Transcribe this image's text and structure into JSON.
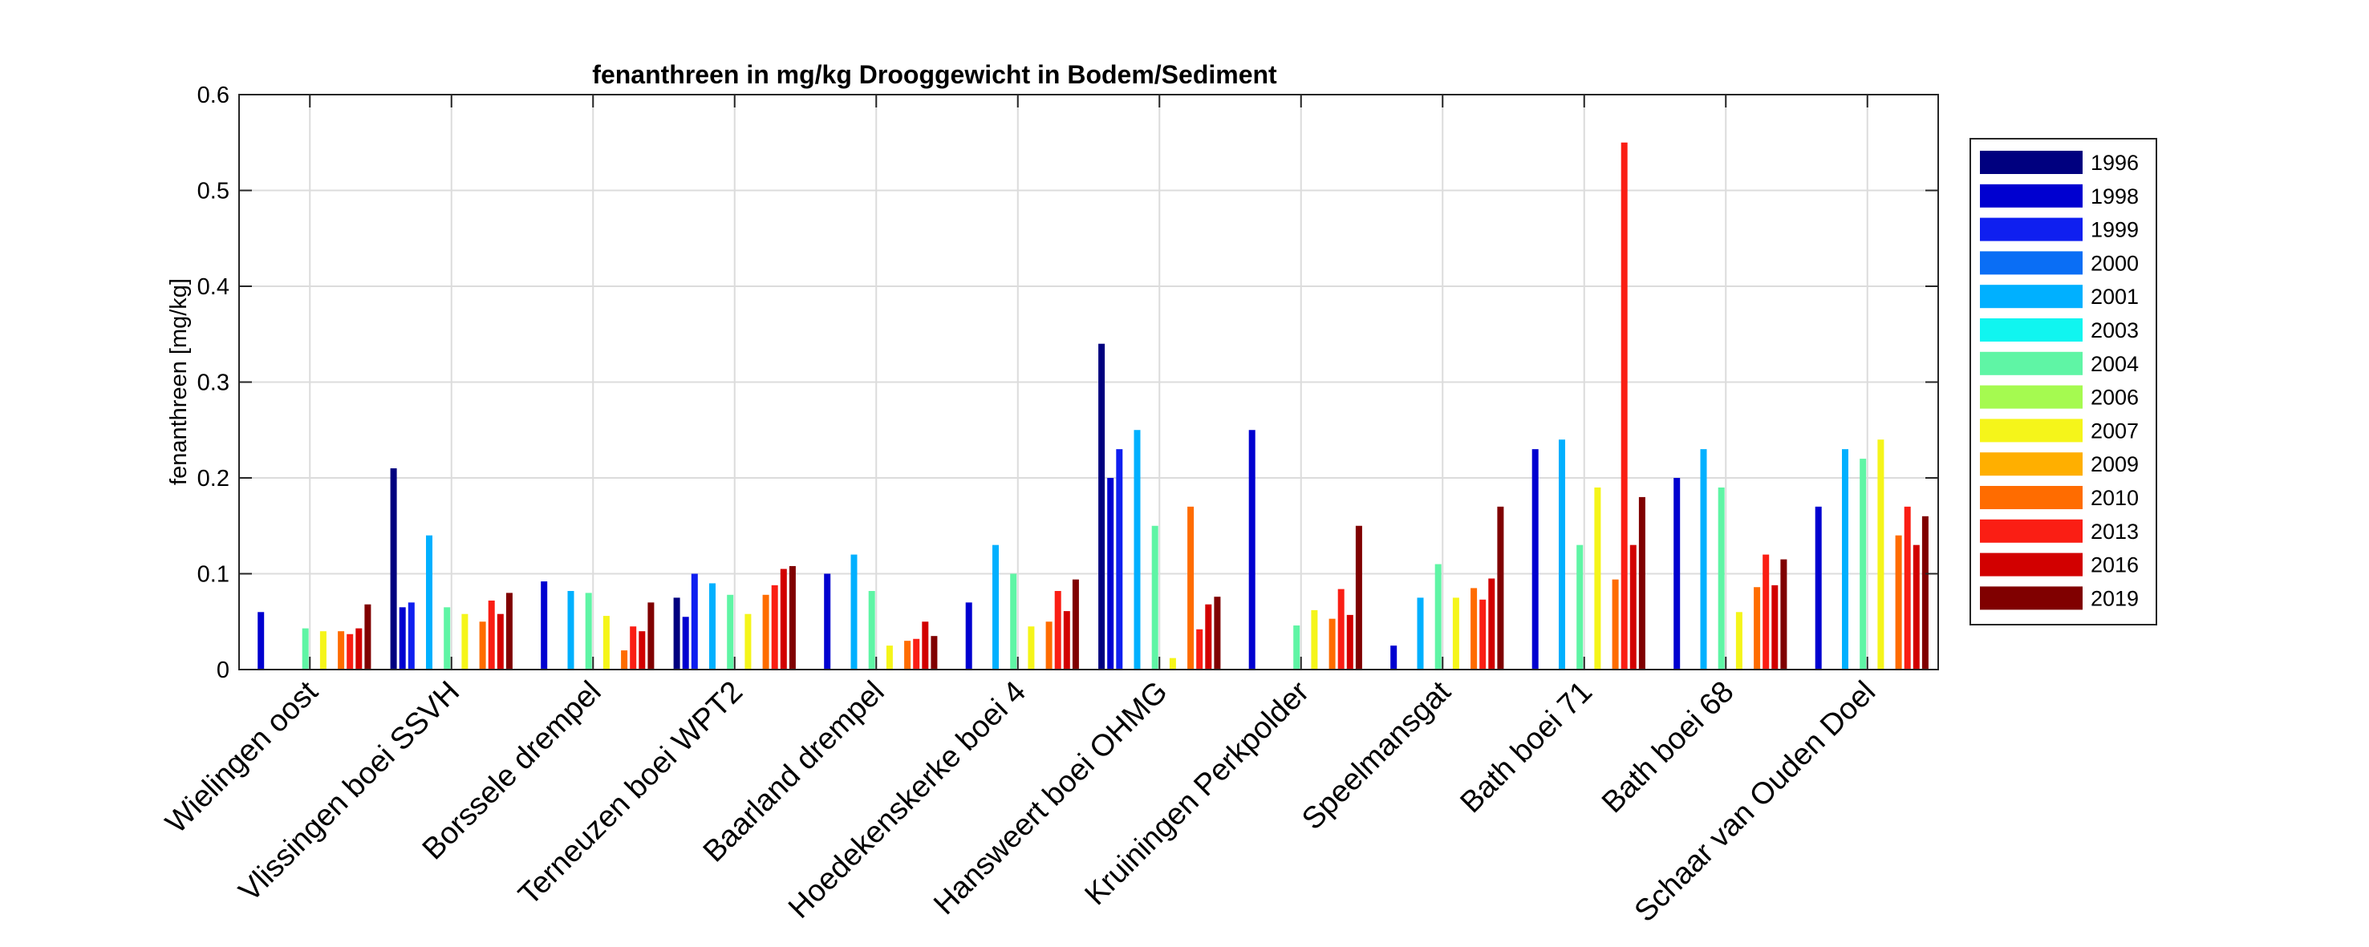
{
  "chart_data": {
    "type": "bar",
    "title": "fenanthreen in mg/kg Drooggewicht in Bodem/Sediment",
    "ylabel": "fenanthreen [mg/kg]",
    "xlabel": "",
    "ylim": [
      0,
      0.6
    ],
    "yticks": [
      "0",
      "0.1",
      "0.2",
      "0.3",
      "0.4",
      "0.5",
      "0.6"
    ],
    "grid": true,
    "legend_position": "right",
    "categories": [
      "Wielingen oost",
      "Vlissingen boei SSVH",
      "Borssele drempel",
      "Terneuzen boei WPT2",
      "Baarland drempel",
      "Hoedekenskerke boei 4",
      "Hansweert boei OHMG",
      "Kruiningen Perkpolder",
      "Speelmansgat",
      "Bath boei 71",
      "Bath boei 68",
      "Schaar van Ouden Doel"
    ],
    "series": [
      {
        "name": "1996",
        "color": "#00007f",
        "values": [
          null,
          0.21,
          null,
          0.075,
          null,
          null,
          0.34,
          null,
          null,
          null,
          null,
          null
        ]
      },
      {
        "name": "1998",
        "color": "#0000d0",
        "values": [
          0.06,
          0.065,
          0.092,
          0.055,
          0.1,
          0.07,
          0.2,
          0.25,
          0.025,
          0.23,
          0.2,
          0.17
        ]
      },
      {
        "name": "1999",
        "color": "#0f1ff0",
        "values": [
          null,
          0.07,
          null,
          0.1,
          null,
          null,
          0.23,
          null,
          null,
          null,
          null,
          null
        ]
      },
      {
        "name": "2000",
        "color": "#0a6ef5",
        "values": [
          null,
          null,
          null,
          null,
          null,
          null,
          null,
          null,
          null,
          null,
          null,
          null
        ]
      },
      {
        "name": "2001",
        "color": "#00b0ff",
        "values": [
          null,
          0.14,
          0.082,
          0.09,
          0.12,
          0.13,
          0.25,
          null,
          0.075,
          0.24,
          0.23,
          0.23
        ]
      },
      {
        "name": "2003",
        "color": "#10f5f0",
        "values": [
          null,
          null,
          null,
          null,
          null,
          null,
          null,
          null,
          null,
          null,
          null,
          null
        ]
      },
      {
        "name": "2004",
        "color": "#5ff5a5",
        "values": [
          0.043,
          0.065,
          0.08,
          0.078,
          0.082,
          0.1,
          0.15,
          0.046,
          0.11,
          0.13,
          0.19,
          0.22
        ]
      },
      {
        "name": "2006",
        "color": "#a5fa50",
        "values": [
          null,
          null,
          null,
          null,
          null,
          null,
          null,
          null,
          null,
          null,
          null,
          null
        ]
      },
      {
        "name": "2007",
        "color": "#f5f51a",
        "values": [
          0.04,
          0.058,
          0.056,
          0.058,
          0.025,
          0.045,
          0.012,
          0.062,
          0.075,
          0.19,
          0.06,
          0.24
        ]
      },
      {
        "name": "2009",
        "color": "#ffaf00",
        "values": [
          null,
          null,
          null,
          null,
          null,
          null,
          null,
          null,
          null,
          null,
          null,
          null
        ]
      },
      {
        "name": "2010",
        "color": "#ff6c00",
        "values": [
          0.04,
          0.05,
          0.02,
          0.078,
          0.03,
          0.05,
          0.17,
          0.053,
          0.085,
          0.094,
          0.086,
          0.14
        ]
      },
      {
        "name": "2013",
        "color": "#fa1e14",
        "values": [
          0.037,
          0.072,
          0.045,
          0.088,
          0.032,
          0.082,
          0.042,
          0.084,
          0.073,
          0.55,
          0.12,
          0.17
        ]
      },
      {
        "name": "2016",
        "color": "#d20000",
        "values": [
          0.043,
          0.058,
          0.04,
          0.105,
          0.05,
          0.061,
          0.068,
          0.057,
          0.095,
          0.13,
          0.088,
          0.13
        ]
      },
      {
        "name": "2019",
        "color": "#800000",
        "values": [
          0.068,
          0.08,
          0.07,
          0.108,
          0.035,
          0.094,
          0.076,
          0.15,
          0.17,
          0.18,
          0.115,
          0.16
        ]
      }
    ]
  }
}
